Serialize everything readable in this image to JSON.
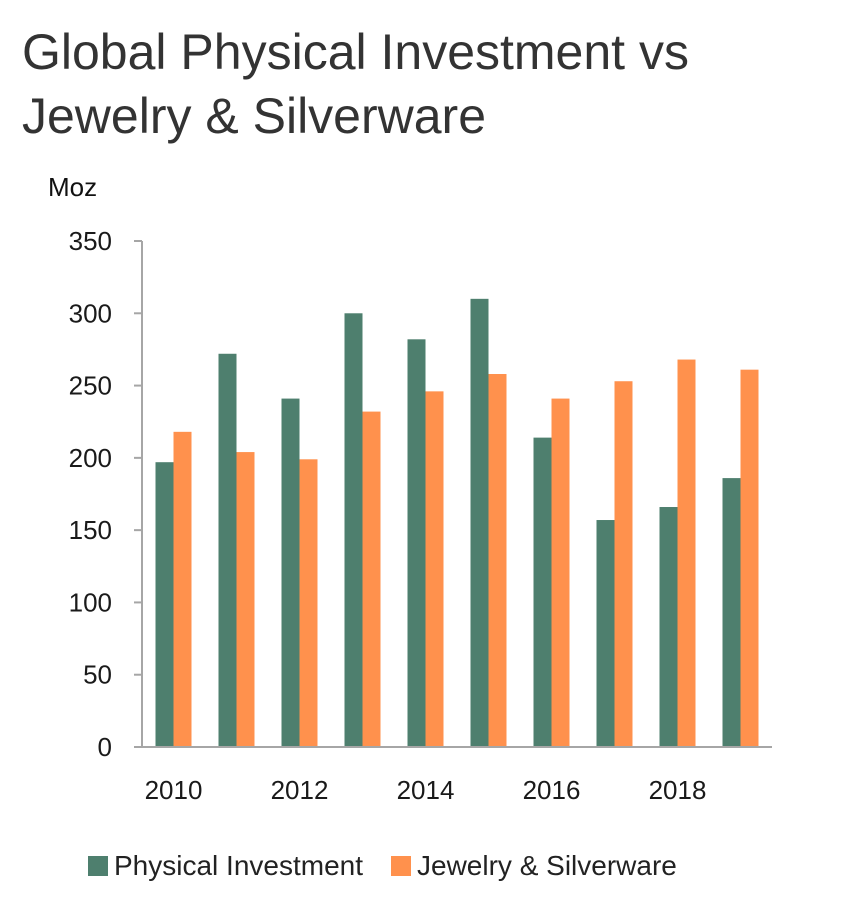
{
  "chart_data": {
    "type": "bar",
    "title": "Global Physical Investment vs Jewelry & Silverware",
    "ylabel": "Moz",
    "xlabel": "",
    "ylim": [
      0,
      350
    ],
    "yticks": [
      0,
      50,
      100,
      150,
      200,
      250,
      300,
      350
    ],
    "categories": [
      "2010",
      "2011",
      "2012",
      "2013",
      "2014",
      "2015",
      "2016",
      "2017",
      "2018",
      "2019"
    ],
    "xtick_labels": [
      "2010",
      "2012",
      "2014",
      "2016",
      "2018"
    ],
    "grid": false,
    "legend_position": "bottom",
    "series": [
      {
        "name": "Physical Investment",
        "color": "#4e7f6e",
        "values": [
          197,
          272,
          241,
          300,
          282,
          310,
          214,
          157,
          166,
          186
        ]
      },
      {
        "name": "Jewelry & Silverware",
        "color": "#ff914d",
        "values": [
          218,
          204,
          199,
          232,
          246,
          258,
          241,
          253,
          268,
          261
        ]
      }
    ]
  }
}
